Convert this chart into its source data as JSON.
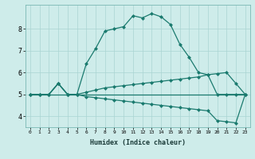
{
  "xlabel": "Humidex (Indice chaleur)",
  "background_color": "#ceecea",
  "grid_color": "#aad4d2",
  "line_color": "#1a7a6e",
  "xlim": [
    -0.5,
    23.5
  ],
  "ylim": [
    3.5,
    9.1
  ],
  "yticks": [
    4,
    5,
    6,
    7,
    8
  ],
  "xticks": [
    0,
    1,
    2,
    3,
    4,
    5,
    6,
    7,
    8,
    9,
    10,
    11,
    12,
    13,
    14,
    15,
    16,
    17,
    18,
    19,
    20,
    21,
    22,
    23
  ],
  "line_main_x": [
    0,
    1,
    2,
    3,
    4,
    5,
    6,
    7,
    8,
    9,
    10,
    11,
    12,
    13,
    14,
    15,
    16,
    17,
    18,
    19,
    20,
    21,
    22,
    23
  ],
  "line_main_y": [
    5.0,
    5.0,
    5.0,
    5.5,
    5.0,
    5.0,
    6.4,
    7.1,
    7.9,
    8.0,
    8.1,
    8.6,
    8.5,
    8.7,
    8.55,
    8.2,
    7.3,
    6.7,
    6.0,
    5.9,
    5.0,
    5.0,
    5.0,
    5.0
  ],
  "line_upper_x": [
    0,
    1,
    2,
    3,
    4,
    5,
    6,
    7,
    8,
    9,
    10,
    11,
    12,
    13,
    14,
    15,
    16,
    17,
    18,
    19,
    20,
    21,
    22,
    23
  ],
  "line_upper_y": [
    5.0,
    5.0,
    5.0,
    5.5,
    5.0,
    5.0,
    5.1,
    5.2,
    5.3,
    5.35,
    5.4,
    5.45,
    5.5,
    5.55,
    5.6,
    5.65,
    5.7,
    5.75,
    5.8,
    5.9,
    5.95,
    6.0,
    5.5,
    5.0
  ],
  "line_lower_x": [
    0,
    1,
    2,
    3,
    4,
    5,
    6,
    7,
    8,
    9,
    10,
    11,
    12,
    13,
    14,
    15,
    16,
    17,
    18,
    19,
    20,
    21,
    22,
    23
  ],
  "line_lower_y": [
    5.0,
    5.0,
    5.0,
    5.5,
    5.0,
    5.0,
    4.9,
    4.85,
    4.8,
    4.75,
    4.7,
    4.65,
    4.6,
    4.55,
    4.5,
    4.45,
    4.4,
    4.35,
    4.3,
    4.25,
    3.8,
    3.75,
    3.7,
    5.0
  ],
  "line_flat_x": [
    0,
    1,
    2,
    3,
    4,
    5,
    6,
    7,
    8,
    9,
    10,
    11,
    12,
    13,
    14,
    15,
    16,
    17,
    18,
    19,
    20,
    21,
    22,
    23
  ],
  "line_flat_y": [
    5.0,
    5.0,
    5.0,
    5.0,
    5.0,
    5.0,
    5.0,
    5.0,
    5.0,
    5.0,
    5.0,
    5.0,
    5.0,
    5.0,
    5.0,
    5.0,
    5.0,
    5.0,
    5.0,
    5.0,
    5.0,
    5.0,
    5.0,
    5.0
  ],
  "markersize": 2.5,
  "linewidth": 0.9
}
